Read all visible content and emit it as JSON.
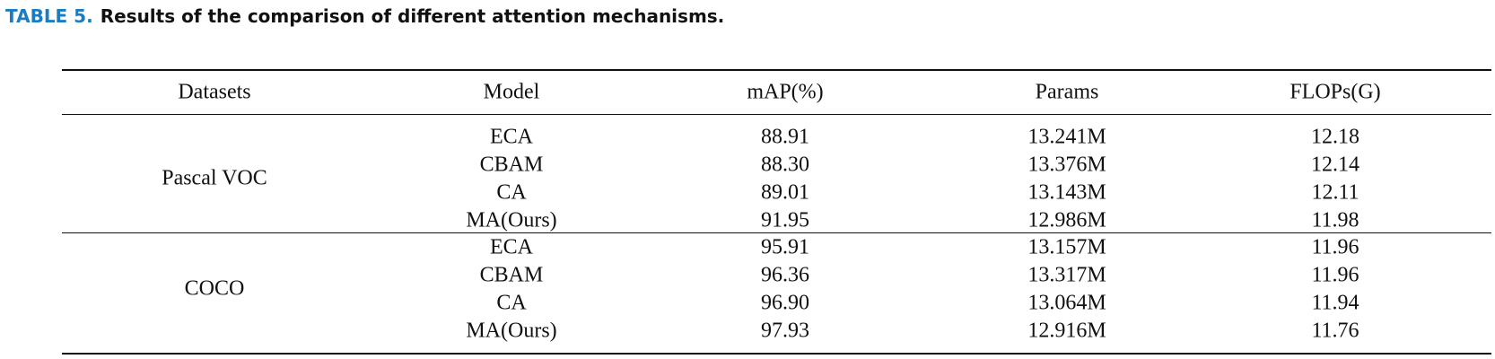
{
  "caption": {
    "label": "TABLE 5.",
    "text": "Results of the comparison of different attention mechanisms."
  },
  "table": {
    "header": [
      "Datasets",
      "Model",
      "mAP(%)",
      "Params",
      "FLOPs(G)"
    ],
    "groups": [
      {
        "dataset": "Pascal VOC",
        "rows": [
          [
            "ECA",
            "88.91",
            "13.241M",
            "12.18"
          ],
          [
            "CBAM",
            "88.30",
            "13.376M",
            "12.14"
          ],
          [
            "CA",
            "89.01",
            "13.143M",
            "12.11"
          ],
          [
            "MA(Ours)",
            "91.95",
            "12.986M",
            "11.98"
          ]
        ]
      },
      {
        "dataset": "COCO",
        "rows": [
          [
            "ECA",
            "95.91",
            "13.157M",
            "11.96"
          ],
          [
            "CBAM",
            "96.36",
            "13.317M",
            "11.96"
          ],
          [
            "CA",
            "96.90",
            "13.064M",
            "11.94"
          ],
          [
            "MA(Ours)",
            "97.93",
            "12.916M",
            "11.76"
          ]
        ]
      }
    ]
  }
}
